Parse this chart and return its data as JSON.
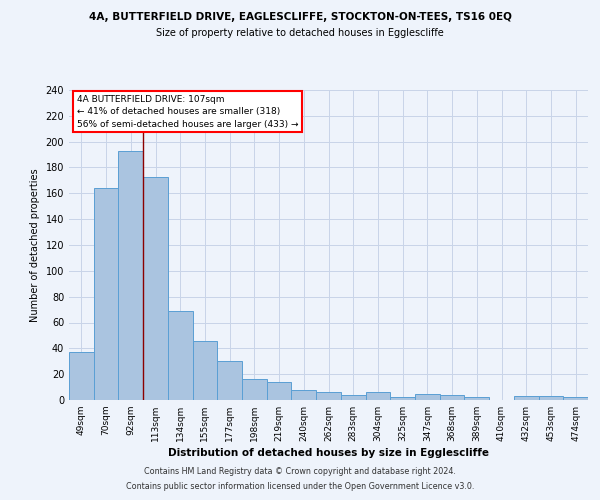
{
  "title_line1": "4A, BUTTERFIELD DRIVE, EAGLESCLIFFE, STOCKTON-ON-TEES, TS16 0EQ",
  "title_line2": "Size of property relative to detached houses in Egglescliffe",
  "xlabel": "Distribution of detached houses by size in Egglescliffe",
  "ylabel": "Number of detached properties",
  "categories": [
    "49sqm",
    "70sqm",
    "92sqm",
    "113sqm",
    "134sqm",
    "155sqm",
    "177sqm",
    "198sqm",
    "219sqm",
    "240sqm",
    "262sqm",
    "283sqm",
    "304sqm",
    "325sqm",
    "347sqm",
    "368sqm",
    "389sqm",
    "410sqm",
    "432sqm",
    "453sqm",
    "474sqm"
  ],
  "values": [
    37,
    164,
    193,
    173,
    69,
    46,
    30,
    16,
    14,
    8,
    6,
    4,
    6,
    2,
    5,
    4,
    2,
    0,
    3,
    3,
    2
  ],
  "bar_color": "#aac4e0",
  "bar_edge_color": "#5a9fd4",
  "red_line_index": 3,
  "annotation_text_line1": "4A BUTTERFIELD DRIVE: 107sqm",
  "annotation_text_line2": "← 41% of detached houses are smaller (318)",
  "annotation_text_line3": "56% of semi-detached houses are larger (433) →",
  "ylim": [
    0,
    240
  ],
  "yticks": [
    0,
    20,
    40,
    60,
    80,
    100,
    120,
    140,
    160,
    180,
    200,
    220,
    240
  ],
  "footer_line1": "Contains HM Land Registry data © Crown copyright and database right 2024.",
  "footer_line2": "Contains public sector information licensed under the Open Government Licence v3.0.",
  "bg_color": "#eef3fb",
  "grid_color": "#c8d4e8"
}
